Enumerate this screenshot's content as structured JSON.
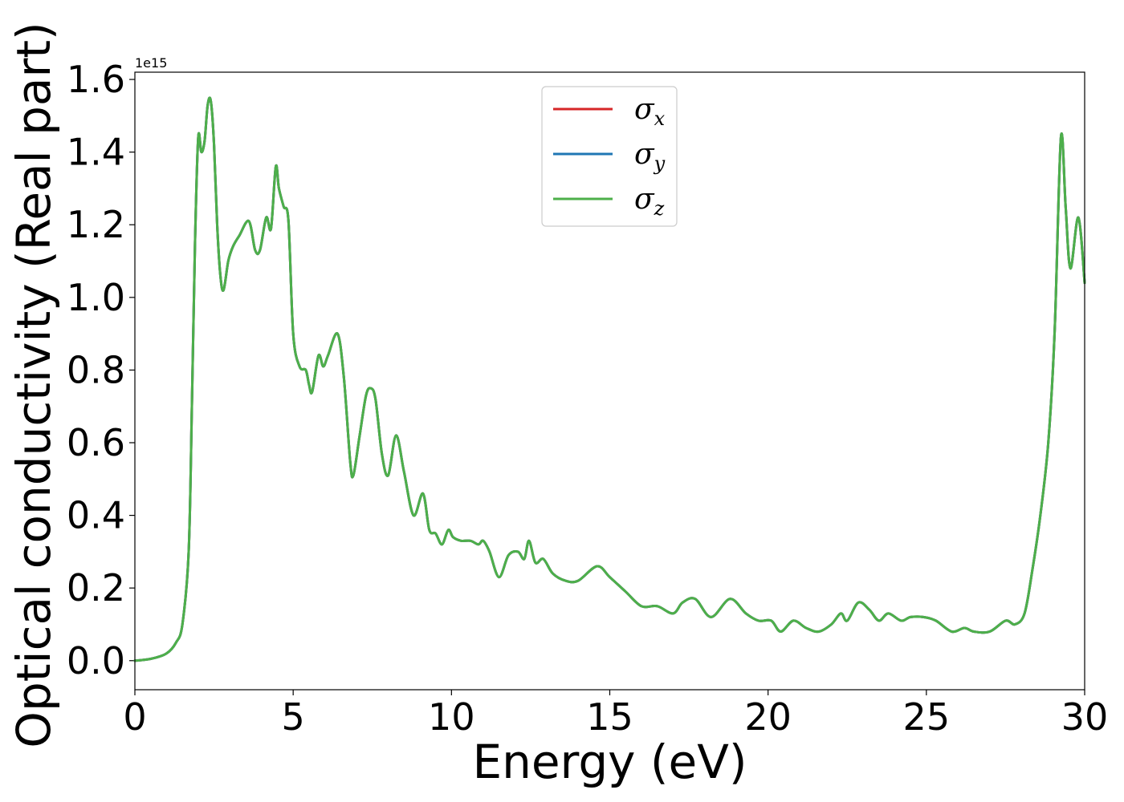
{
  "chart_data": {
    "type": "line",
    "xlabel": "Energy (eV)",
    "ylabel": "Optical conductivity (Real part)",
    "y_offset_label": "1e15",
    "xlim": [
      0,
      30
    ],
    "ylim": [
      -0.08,
      1.62
    ],
    "x_ticks": [
      0,
      5,
      10,
      15,
      20,
      25,
      30
    ],
    "x_tick_labels": [
      "0",
      "5",
      "10",
      "15",
      "20",
      "25",
      "30"
    ],
    "y_ticks": [
      0.0,
      0.2,
      0.4,
      0.6,
      0.8,
      1.0,
      1.2,
      1.4,
      1.6
    ],
    "y_tick_labels": [
      "0.0",
      "0.2",
      "0.4",
      "0.6",
      "0.8",
      "1.0",
      "1.2",
      "1.4",
      "1.6"
    ],
    "grid": false,
    "legend_position": "upper-center",
    "x": [
      0,
      0.5,
      1.0,
      1.3,
      1.5,
      1.7,
      1.8,
      1.9,
      2.0,
      2.1,
      2.2,
      2.3,
      2.4,
      2.5,
      2.6,
      2.7,
      2.8,
      2.95,
      3.1,
      3.3,
      3.6,
      3.8,
      3.95,
      4.15,
      4.3,
      4.45,
      4.55,
      4.7,
      4.85,
      5.0,
      5.2,
      5.4,
      5.5,
      5.6,
      5.8,
      5.95,
      6.1,
      6.4,
      6.6,
      6.8,
      6.9,
      7.1,
      7.3,
      7.45,
      7.6,
      7.8,
      8.0,
      8.25,
      8.5,
      8.8,
      9.1,
      9.3,
      9.5,
      9.7,
      9.9,
      10.05,
      10.3,
      10.6,
      10.85,
      11.0,
      11.2,
      11.5,
      11.8,
      12.1,
      12.3,
      12.45,
      12.65,
      12.9,
      13.2,
      13.6,
      14.0,
      14.6,
      15.0,
      15.5,
      16.0,
      16.5,
      17.0,
      17.3,
      17.7,
      18.2,
      18.8,
      19.3,
      19.7,
      20.1,
      20.4,
      20.8,
      21.2,
      21.6,
      22.0,
      22.3,
      22.5,
      22.85,
      23.2,
      23.5,
      23.8,
      24.2,
      24.5,
      24.9,
      25.3,
      25.8,
      26.2,
      26.5,
      27.0,
      27.5,
      27.8,
      28.1,
      28.35,
      28.6,
      28.85,
      29.05,
      29.25,
      29.4,
      29.55,
      29.8,
      30.0
    ],
    "series": [
      {
        "name": "σ_x",
        "label_main": "σ",
        "label_sub": "x",
        "color": "#d62728",
        "values": [
          0.0,
          0.005,
          0.02,
          0.05,
          0.1,
          0.3,
          0.7,
          1.15,
          1.44,
          1.4,
          1.43,
          1.53,
          1.54,
          1.42,
          1.2,
          1.06,
          1.02,
          1.1,
          1.14,
          1.17,
          1.21,
          1.13,
          1.13,
          1.22,
          1.19,
          1.36,
          1.3,
          1.25,
          1.21,
          0.9,
          0.81,
          0.8,
          0.76,
          0.74,
          0.84,
          0.81,
          0.84,
          0.9,
          0.78,
          0.55,
          0.51,
          0.62,
          0.73,
          0.75,
          0.72,
          0.57,
          0.51,
          0.62,
          0.52,
          0.4,
          0.46,
          0.36,
          0.35,
          0.32,
          0.36,
          0.34,
          0.33,
          0.33,
          0.32,
          0.33,
          0.3,
          0.23,
          0.29,
          0.3,
          0.28,
          0.33,
          0.27,
          0.28,
          0.24,
          0.22,
          0.22,
          0.26,
          0.23,
          0.19,
          0.15,
          0.15,
          0.13,
          0.16,
          0.17,
          0.12,
          0.17,
          0.13,
          0.11,
          0.11,
          0.08,
          0.11,
          0.09,
          0.08,
          0.1,
          0.13,
          0.11,
          0.16,
          0.14,
          0.11,
          0.13,
          0.11,
          0.12,
          0.12,
          0.11,
          0.08,
          0.09,
          0.08,
          0.08,
          0.11,
          0.1,
          0.13,
          0.25,
          0.4,
          0.6,
          0.9,
          1.44,
          1.25,
          1.08,
          1.22,
          1.04
        ]
      },
      {
        "name": "σ_y",
        "label_main": "σ",
        "label_sub": "y",
        "color": "#1f77b4",
        "values": [
          0.0,
          0.005,
          0.02,
          0.05,
          0.1,
          0.3,
          0.7,
          1.15,
          1.44,
          1.4,
          1.43,
          1.53,
          1.54,
          1.42,
          1.2,
          1.06,
          1.02,
          1.1,
          1.14,
          1.17,
          1.21,
          1.13,
          1.13,
          1.22,
          1.19,
          1.36,
          1.3,
          1.25,
          1.21,
          0.9,
          0.81,
          0.8,
          0.76,
          0.74,
          0.84,
          0.81,
          0.84,
          0.9,
          0.78,
          0.55,
          0.51,
          0.62,
          0.73,
          0.75,
          0.72,
          0.57,
          0.51,
          0.62,
          0.52,
          0.4,
          0.46,
          0.36,
          0.35,
          0.32,
          0.36,
          0.34,
          0.33,
          0.33,
          0.32,
          0.33,
          0.3,
          0.23,
          0.29,
          0.3,
          0.28,
          0.33,
          0.27,
          0.28,
          0.24,
          0.22,
          0.22,
          0.26,
          0.23,
          0.19,
          0.15,
          0.15,
          0.13,
          0.16,
          0.17,
          0.12,
          0.17,
          0.13,
          0.11,
          0.11,
          0.08,
          0.11,
          0.09,
          0.08,
          0.1,
          0.13,
          0.11,
          0.16,
          0.14,
          0.11,
          0.13,
          0.11,
          0.12,
          0.12,
          0.11,
          0.08,
          0.09,
          0.08,
          0.08,
          0.11,
          0.1,
          0.13,
          0.25,
          0.4,
          0.6,
          0.9,
          1.44,
          1.25,
          1.08,
          1.22,
          1.04
        ]
      },
      {
        "name": "σ_z",
        "label_main": "σ",
        "label_sub": "z",
        "color": "#4daf4a",
        "values": [
          0.0,
          0.005,
          0.02,
          0.05,
          0.1,
          0.3,
          0.7,
          1.15,
          1.44,
          1.4,
          1.43,
          1.53,
          1.54,
          1.42,
          1.2,
          1.06,
          1.02,
          1.1,
          1.14,
          1.17,
          1.21,
          1.13,
          1.13,
          1.22,
          1.19,
          1.36,
          1.3,
          1.25,
          1.21,
          0.9,
          0.81,
          0.8,
          0.76,
          0.74,
          0.84,
          0.81,
          0.84,
          0.9,
          0.78,
          0.55,
          0.51,
          0.62,
          0.73,
          0.75,
          0.72,
          0.57,
          0.51,
          0.62,
          0.52,
          0.4,
          0.46,
          0.36,
          0.35,
          0.32,
          0.36,
          0.34,
          0.33,
          0.33,
          0.32,
          0.33,
          0.3,
          0.23,
          0.29,
          0.3,
          0.28,
          0.33,
          0.27,
          0.28,
          0.24,
          0.22,
          0.22,
          0.26,
          0.23,
          0.19,
          0.15,
          0.15,
          0.13,
          0.16,
          0.17,
          0.12,
          0.17,
          0.13,
          0.11,
          0.11,
          0.08,
          0.11,
          0.09,
          0.08,
          0.1,
          0.13,
          0.11,
          0.16,
          0.14,
          0.11,
          0.13,
          0.11,
          0.12,
          0.12,
          0.11,
          0.08,
          0.09,
          0.08,
          0.08,
          0.11,
          0.1,
          0.13,
          0.25,
          0.4,
          0.6,
          0.9,
          1.44,
          1.25,
          1.08,
          1.22,
          1.04
        ]
      }
    ]
  }
}
